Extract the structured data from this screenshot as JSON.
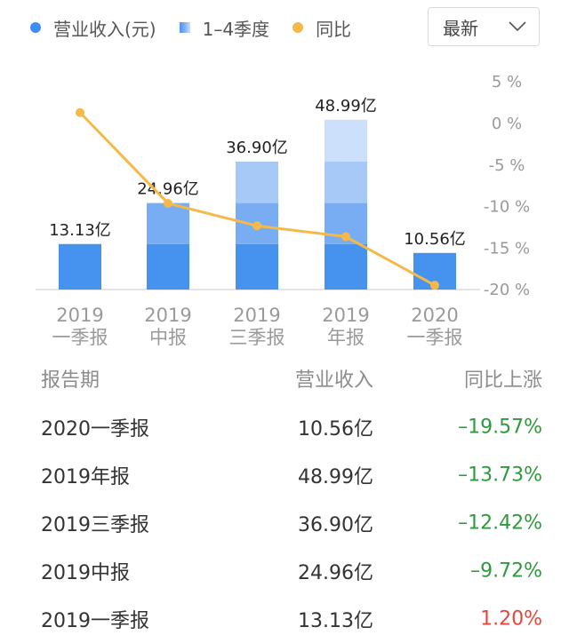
{
  "legend": {
    "revenue_label": "营业收入(元)",
    "quarters_label": "1–4季度",
    "yoy_label": "同比",
    "revenue_color": "#3d8ef0",
    "yoy_color": "#f5b94a"
  },
  "selector": {
    "value": "最新",
    "icon": "chevron-down-icon"
  },
  "chart_data": {
    "type": "bar",
    "categories": [
      [
        "2019",
        "一季报"
      ],
      [
        "2019",
        "中报"
      ],
      [
        "2019",
        "三季报"
      ],
      [
        "2019",
        "年报"
      ],
      [
        "2020",
        "一季报"
      ]
    ],
    "bar_labels": [
      "13.13亿",
      "24.96亿",
      "36.90亿",
      "48.99亿",
      "10.56亿"
    ],
    "series": [
      {
        "values": [
          13.13,
          24.96,
          36.9,
          48.99,
          10.56
        ]
      },
      {
        "name": "同比",
        "type": "line",
        "axis": "right",
        "values": [
          1.2,
          -9.72,
          -12.42,
          -13.73,
          -19.57
        ]
      }
    ],
    "stack_segments": [
      [
        13.13
      ],
      [
        13.13,
        11.83
      ],
      [
        13.13,
        11.83,
        11.94
      ],
      [
        13.13,
        11.83,
        11.94,
        12.09
      ],
      [
        10.56
      ]
    ],
    "segment_colors": [
      "#4592ef",
      "#78adf4",
      "#a6c9f7",
      "#cde0fb"
    ],
    "y_left_range": [
      0,
      50
    ],
    "y_right_ticks": [
      "5 %",
      "0 %",
      "-5 %",
      "-10 %",
      "-15 %",
      "-20 %"
    ],
    "y_right_values": [
      5,
      0,
      -5,
      -10,
      -15,
      -20
    ]
  },
  "table": {
    "headers": {
      "period": "报告期",
      "revenue": "营业收入",
      "yoy": "同比上涨"
    },
    "rows": [
      {
        "period": "2020一季报",
        "revenue": "10.56亿",
        "yoy": "–19.57%",
        "trend": "down"
      },
      {
        "period": "2019年报",
        "revenue": "48.99亿",
        "yoy": "–13.73%",
        "trend": "down"
      },
      {
        "period": "2019三季报",
        "revenue": "36.90亿",
        "yoy": "–12.42%",
        "trend": "down"
      },
      {
        "period": "2019中报",
        "revenue": "24.96亿",
        "yoy": "–9.72%",
        "trend": "down"
      },
      {
        "period": "2019一季报",
        "revenue": "13.13亿",
        "yoy": "1.20%",
        "trend": "up"
      }
    ],
    "down_color": "#2e9a3c",
    "up_color": "#e8453c"
  }
}
